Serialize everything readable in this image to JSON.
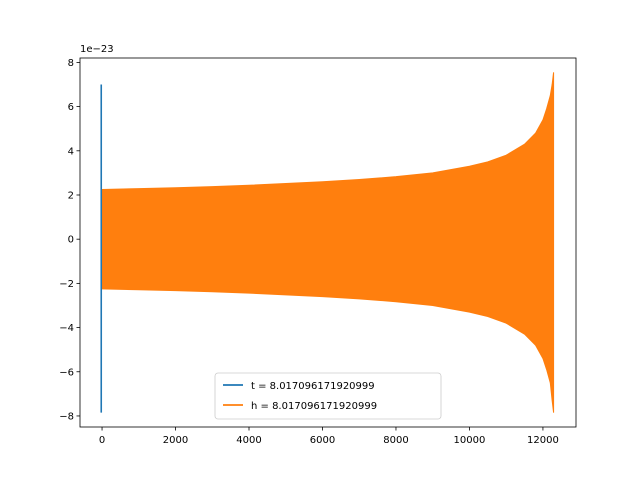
{
  "chart_data": {
    "type": "line",
    "title": "",
    "xlabel": "",
    "ylabel": "",
    "y_offset_label": "1e−23",
    "y_multiplier": 1e-23,
    "xlim": [
      -600,
      12900
    ],
    "ylim": [
      -8.5,
      8.2
    ],
    "x_ticks": [
      0,
      2000,
      4000,
      6000,
      8000,
      10000,
      12000
    ],
    "x_tick_labels": [
      "0",
      "2000",
      "4000",
      "6000",
      "8000",
      "10000",
      "12000"
    ],
    "y_ticks": [
      -8,
      -6,
      -4,
      -2,
      0,
      2,
      4,
      6,
      8
    ],
    "y_tick_labels": [
      "−8",
      "−6",
      "−4",
      "−2",
      "0",
      "2",
      "4",
      "6",
      "8"
    ],
    "grid": false,
    "legend_position": "bottom-center",
    "series": [
      {
        "name": "t = 8.017096171920999",
        "color": "#1f77b4",
        "kind": "spike",
        "x": [
          0,
          0,
          0,
          0
        ],
        "y": [
          7.0,
          -7.85,
          4.9,
          -2.2
        ]
      },
      {
        "name": "h = 8.017096171920999",
        "color": "#ff7f0e",
        "kind": "envelope",
        "x": [
          0,
          1000,
          2000,
          3000,
          4000,
          5000,
          6000,
          7000,
          8000,
          9000,
          10000,
          10500,
          11000,
          11500,
          11800,
          12000,
          12100,
          12200,
          12250,
          12290
        ],
        "upper": [
          2.25,
          2.29,
          2.33,
          2.38,
          2.44,
          2.52,
          2.6,
          2.7,
          2.83,
          3.0,
          3.3,
          3.5,
          3.8,
          4.3,
          4.8,
          5.4,
          5.9,
          6.5,
          7.0,
          7.55
        ],
        "lower": [
          -2.25,
          -2.29,
          -2.33,
          -2.38,
          -2.44,
          -2.52,
          -2.6,
          -2.7,
          -2.83,
          -3.0,
          -3.3,
          -3.5,
          -3.8,
          -4.3,
          -4.8,
          -5.4,
          -5.9,
          -6.5,
          -7.3,
          -7.85
        ]
      }
    ]
  }
}
